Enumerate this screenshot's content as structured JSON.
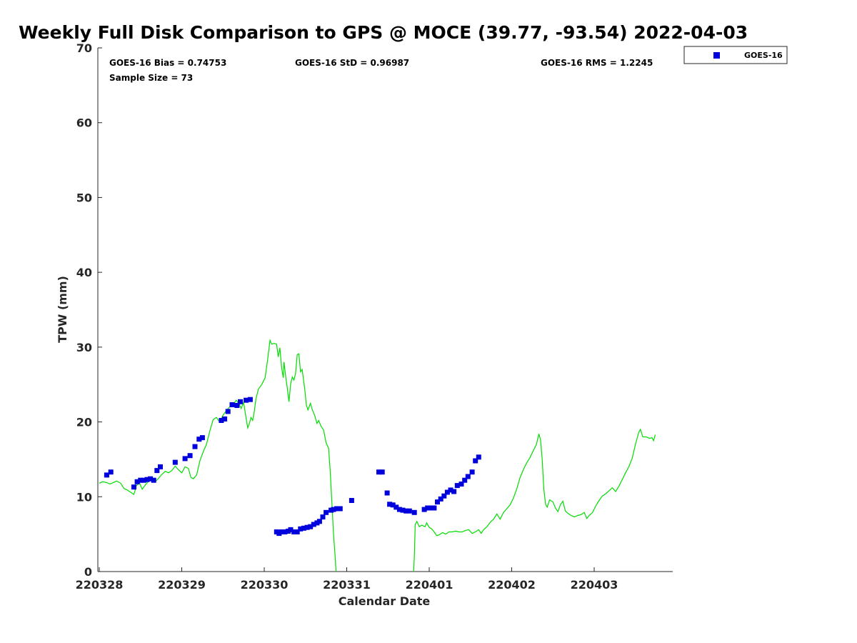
{
  "chart_data": {
    "type": "scatter",
    "title": "Weekly Full Disk Comparison to GPS @ MOCE (39.77, -93.54) 2022-04-03",
    "xlabel": "Calendar Date",
    "ylabel": "TPW (mm)",
    "ylim": [
      0,
      70
    ],
    "y_ticks": [
      "0",
      "10",
      "20",
      "30",
      "40",
      "50",
      "60",
      "70"
    ],
    "x_tick_labels": [
      "220328",
      "220329",
      "220330",
      "220331",
      "220401",
      "220402",
      "220403"
    ],
    "stats": {
      "bias": "GOES-16 Bias = 0.74753",
      "std": "GOES-16 StD = 0.96987",
      "rms": "GOES-16 RMS = 1.2245",
      "sample": "Sample Size = 73"
    },
    "legend": {
      "position": "top-right outside",
      "entries": [
        "GOES-16"
      ]
    },
    "colors": {
      "goes": "#0000dd",
      "gps": "#00dd00"
    },
    "series": [
      {
        "name": "GOES-16",
        "marker": "square",
        "points": [
          [
            0.09,
            12.9
          ],
          [
            0.14,
            13.3
          ],
          [
            0.42,
            11.3
          ],
          [
            0.46,
            12.0
          ],
          [
            0.5,
            12.2
          ],
          [
            0.54,
            12.2
          ],
          [
            0.58,
            12.3
          ],
          [
            0.62,
            12.4
          ],
          [
            0.66,
            12.2
          ],
          [
            0.7,
            13.5
          ],
          [
            0.74,
            14.0
          ],
          [
            0.92,
            14.6
          ],
          [
            1.04,
            15.1
          ],
          [
            1.1,
            15.5
          ],
          [
            1.16,
            16.7
          ],
          [
            1.21,
            17.7
          ],
          [
            1.25,
            17.9
          ],
          [
            1.48,
            20.2
          ],
          [
            1.52,
            20.4
          ],
          [
            1.56,
            21.4
          ],
          [
            1.61,
            22.3
          ],
          [
            1.67,
            22.2
          ],
          [
            1.71,
            22.7
          ],
          [
            1.78,
            22.9
          ],
          [
            1.83,
            23.0
          ],
          [
            2.15,
            5.3
          ],
          [
            2.18,
            5.1
          ],
          [
            2.21,
            5.3
          ],
          [
            2.25,
            5.3
          ],
          [
            2.29,
            5.4
          ],
          [
            2.32,
            5.6
          ],
          [
            2.36,
            5.3
          ],
          [
            2.4,
            5.3
          ],
          [
            2.44,
            5.7
          ],
          [
            2.48,
            5.8
          ],
          [
            2.52,
            5.9
          ],
          [
            2.56,
            6.0
          ],
          [
            2.6,
            6.3
          ],
          [
            2.64,
            6.5
          ],
          [
            2.67,
            6.7
          ],
          [
            2.71,
            7.3
          ],
          [
            2.75,
            7.9
          ],
          [
            2.81,
            8.2
          ],
          [
            2.84,
            8.3
          ],
          [
            2.88,
            8.4
          ],
          [
            2.92,
            8.4
          ],
          [
            3.06,
            9.5
          ],
          [
            3.39,
            13.3
          ],
          [
            3.43,
            13.3
          ],
          [
            3.49,
            10.5
          ],
          [
            3.52,
            9.0
          ],
          [
            3.56,
            8.9
          ],
          [
            3.6,
            8.6
          ],
          [
            3.64,
            8.3
          ],
          [
            3.68,
            8.2
          ],
          [
            3.72,
            8.1
          ],
          [
            3.76,
            8.1
          ],
          [
            3.82,
            7.9
          ],
          [
            3.94,
            8.3
          ],
          [
            3.98,
            8.5
          ],
          [
            4.02,
            8.5
          ],
          [
            4.06,
            8.5
          ],
          [
            4.1,
            9.3
          ],
          [
            4.14,
            9.7
          ],
          [
            4.18,
            10.1
          ],
          [
            4.22,
            10.6
          ],
          [
            4.26,
            10.9
          ],
          [
            4.3,
            10.7
          ],
          [
            4.34,
            11.5
          ],
          [
            4.39,
            11.7
          ],
          [
            4.43,
            12.2
          ],
          [
            4.47,
            12.7
          ],
          [
            4.52,
            13.3
          ],
          [
            4.56,
            14.8
          ],
          [
            4.6,
            15.3
          ]
        ]
      },
      {
        "name": "GPS",
        "marker": "line",
        "points": [
          [
            0.0,
            11.8
          ],
          [
            0.04,
            12.0
          ],
          [
            0.09,
            11.9
          ],
          [
            0.13,
            11.7
          ],
          [
            0.17,
            11.9
          ],
          [
            0.21,
            12.1
          ],
          [
            0.26,
            11.8
          ],
          [
            0.3,
            11.1
          ],
          [
            0.34,
            10.9
          ],
          [
            0.38,
            10.6
          ],
          [
            0.42,
            10.3
          ],
          [
            0.45,
            11.5
          ],
          [
            0.49,
            11.8
          ],
          [
            0.52,
            11.0
          ],
          [
            0.56,
            11.6
          ],
          [
            0.6,
            12.1
          ],
          [
            0.64,
            12.5
          ],
          [
            0.68,
            12.0
          ],
          [
            0.72,
            12.5
          ],
          [
            0.76,
            13.0
          ],
          [
            0.8,
            13.4
          ],
          [
            0.84,
            13.2
          ],
          [
            0.88,
            13.5
          ],
          [
            0.92,
            14.1
          ],
          [
            0.96,
            13.6
          ],
          [
            1.0,
            13.2
          ],
          [
            1.04,
            14.0
          ],
          [
            1.08,
            13.8
          ],
          [
            1.11,
            12.6
          ],
          [
            1.14,
            12.4
          ],
          [
            1.18,
            12.9
          ],
          [
            1.22,
            14.8
          ],
          [
            1.26,
            16.0
          ],
          [
            1.3,
            17.0
          ],
          [
            1.34,
            18.8
          ],
          [
            1.38,
            20.3
          ],
          [
            1.42,
            20.6
          ],
          [
            1.46,
            20.0
          ],
          [
            1.5,
            20.9
          ],
          [
            1.54,
            21.5
          ],
          [
            1.58,
            22.0
          ],
          [
            1.62,
            22.2
          ],
          [
            1.66,
            22.9
          ],
          [
            1.7,
            22.3
          ],
          [
            1.72,
            21.8
          ],
          [
            1.75,
            22.6
          ],
          [
            1.78,
            20.5
          ],
          [
            1.8,
            19.2
          ],
          [
            1.82,
            19.8
          ],
          [
            1.84,
            20.6
          ],
          [
            1.86,
            20.2
          ],
          [
            1.88,
            21.4
          ],
          [
            1.9,
            23.1
          ],
          [
            1.93,
            24.4
          ],
          [
            1.97,
            25.0
          ],
          [
            2.01,
            25.9
          ],
          [
            2.04,
            28.2
          ],
          [
            2.07,
            30.9
          ],
          [
            2.09,
            30.4
          ],
          [
            2.12,
            30.5
          ],
          [
            2.15,
            30.4
          ],
          [
            2.17,
            28.7
          ],
          [
            2.19,
            29.9
          ],
          [
            2.21,
            27.3
          ],
          [
            2.23,
            25.9
          ],
          [
            2.24,
            28.0
          ],
          [
            2.26,
            26.1
          ],
          [
            2.28,
            24.5
          ],
          [
            2.3,
            22.7
          ],
          [
            2.32,
            25.1
          ],
          [
            2.34,
            26.0
          ],
          [
            2.36,
            25.6
          ],
          [
            2.38,
            26.5
          ],
          [
            2.4,
            29.0
          ],
          [
            2.42,
            29.1
          ],
          [
            2.44,
            26.7
          ],
          [
            2.46,
            27.0
          ],
          [
            2.49,
            24.5
          ],
          [
            2.51,
            22.3
          ],
          [
            2.53,
            21.6
          ],
          [
            2.56,
            22.5
          ],
          [
            2.58,
            21.7
          ],
          [
            2.61,
            20.9
          ],
          [
            2.64,
            19.8
          ],
          [
            2.66,
            20.2
          ],
          [
            2.69,
            19.4
          ],
          [
            2.72,
            18.9
          ],
          [
            2.75,
            17.2
          ],
          [
            2.78,
            16.5
          ],
          [
            2.8,
            13.4
          ],
          [
            2.82,
            9.2
          ],
          [
            2.84,
            5.0
          ],
          [
            2.86,
            2.0
          ],
          [
            2.87,
            0.0
          ]
        ]
      },
      {
        "name": "GPS",
        "marker": "line",
        "points": [
          [
            3.81,
            0.0
          ],
          [
            3.82,
            2.0
          ],
          [
            3.83,
            6.3
          ],
          [
            3.85,
            6.7
          ],
          [
            3.88,
            6.0
          ],
          [
            3.91,
            6.2
          ],
          [
            3.95,
            6.0
          ],
          [
            3.97,
            6.5
          ],
          [
            4.0,
            5.9
          ],
          [
            4.03,
            5.7
          ],
          [
            4.06,
            5.3
          ],
          [
            4.09,
            4.8
          ],
          [
            4.12,
            4.9
          ],
          [
            4.16,
            5.2
          ],
          [
            4.2,
            5.0
          ],
          [
            4.24,
            5.3
          ],
          [
            4.28,
            5.3
          ],
          [
            4.32,
            5.4
          ],
          [
            4.36,
            5.3
          ],
          [
            4.4,
            5.3
          ],
          [
            4.44,
            5.5
          ],
          [
            4.48,
            5.6
          ],
          [
            4.52,
            5.1
          ],
          [
            4.56,
            5.3
          ],
          [
            4.6,
            5.6
          ],
          [
            4.63,
            5.1
          ],
          [
            4.66,
            5.6
          ],
          [
            4.7,
            6.0
          ],
          [
            4.74,
            6.6
          ],
          [
            4.78,
            7.0
          ],
          [
            4.82,
            7.7
          ],
          [
            4.86,
            7.0
          ],
          [
            4.9,
            7.9
          ],
          [
            4.94,
            8.4
          ],
          [
            4.98,
            8.9
          ],
          [
            5.02,
            9.8
          ],
          [
            5.06,
            11.0
          ],
          [
            5.1,
            12.5
          ],
          [
            5.14,
            13.6
          ],
          [
            5.18,
            14.5
          ],
          [
            5.22,
            15.2
          ],
          [
            5.26,
            16.1
          ],
          [
            5.3,
            17.0
          ],
          [
            5.33,
            18.4
          ],
          [
            5.35,
            17.6
          ],
          [
            5.37,
            15.0
          ],
          [
            5.39,
            11.0
          ],
          [
            5.41,
            9.0
          ],
          [
            5.43,
            8.6
          ],
          [
            5.46,
            9.6
          ],
          [
            5.5,
            9.3
          ],
          [
            5.53,
            8.5
          ],
          [
            5.56,
            8.0
          ],
          [
            5.59,
            8.9
          ],
          [
            5.62,
            9.4
          ],
          [
            5.65,
            8.1
          ],
          [
            5.68,
            7.8
          ],
          [
            5.72,
            7.5
          ],
          [
            5.76,
            7.3
          ],
          [
            5.8,
            7.5
          ],
          [
            5.84,
            7.6
          ],
          [
            5.88,
            7.9
          ],
          [
            5.91,
            7.1
          ],
          [
            5.94,
            7.5
          ],
          [
            5.98,
            7.9
          ],
          [
            6.02,
            8.8
          ],
          [
            6.06,
            9.5
          ],
          [
            6.1,
            10.1
          ],
          [
            6.14,
            10.4
          ],
          [
            6.18,
            10.8
          ],
          [
            6.22,
            11.2
          ],
          [
            6.26,
            10.7
          ],
          [
            6.3,
            11.4
          ],
          [
            6.34,
            12.3
          ],
          [
            6.38,
            13.2
          ],
          [
            6.42,
            14.0
          ],
          [
            6.46,
            15.1
          ],
          [
            6.5,
            17.0
          ],
          [
            6.54,
            18.6
          ],
          [
            6.56,
            19.0
          ],
          [
            6.59,
            18.0
          ],
          [
            6.63,
            18.0
          ],
          [
            6.67,
            17.8
          ],
          [
            6.7,
            17.9
          ],
          [
            6.72,
            17.5
          ],
          [
            6.74,
            18.3
          ]
        ]
      }
    ]
  }
}
